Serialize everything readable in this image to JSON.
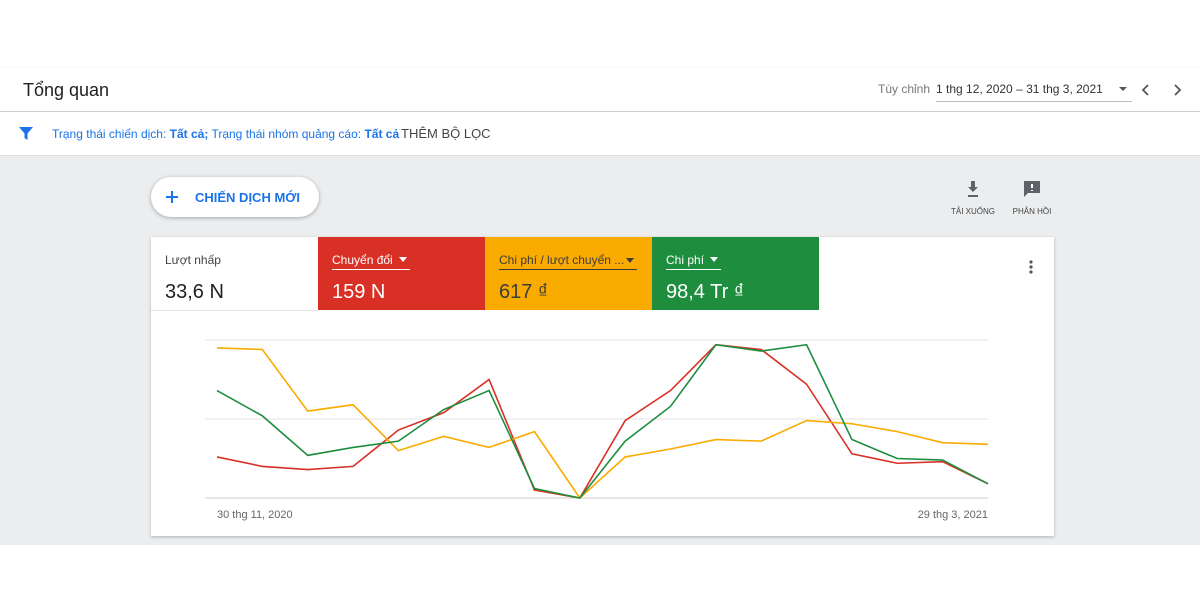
{
  "header": {
    "title": "Tổng quan",
    "range_label": "Tùy chỉnh",
    "date_range": "1 thg 12, 2020 – 31 thg 3, 2021"
  },
  "filter_bar": {
    "filters": [
      {
        "label": "Trạng thái chiến dịch:",
        "value": "Tất cả;"
      },
      {
        "label": "Trạng thái nhóm quảng cáo:",
        "value": "Tất cả"
      }
    ],
    "add_filter": "THÊM BỘ LỌC"
  },
  "actions": {
    "new_campaign": "CHIẾN DỊCH MỚI",
    "download": "TẢI XUỐNG",
    "feedback": "PHẢN HỒI"
  },
  "clicks": {
    "label": "Lượt nhấp",
    "value": "33,6 N"
  },
  "chart_data": {
    "type": "line",
    "categories": [
      "30 thg 11, 2020",
      null,
      null,
      null,
      null,
      null,
      null,
      null,
      null,
      null,
      null,
      null,
      null,
      null,
      null,
      null,
      null,
      "29 thg 3, 2021"
    ],
    "ylim": [
      0,
      100
    ],
    "yticks": [
      0,
      50,
      100
    ],
    "grid": true,
    "series": [
      {
        "name": "Chuyển đổi",
        "summary": "159 N",
        "color": "#d93025",
        "values": [
          26,
          20,
          18,
          20,
          43,
          54,
          75,
          5,
          0,
          49,
          68,
          97,
          94,
          72,
          28,
          22,
          23,
          9
        ]
      },
      {
        "name": "Chi phí / lượt chuyển ...",
        "summary": "617 ₫",
        "color": "#f9ab00",
        "values": [
          95,
          94,
          55,
          59,
          30,
          39,
          32,
          42,
          0,
          26,
          31,
          37,
          36,
          49,
          47,
          42,
          35,
          34
        ]
      },
      {
        "name": "Chi phí",
        "summary": "98,4 Tr ₫",
        "color": "#1e8e3e",
        "values": [
          68,
          52,
          27,
          32,
          36,
          56,
          68,
          6,
          0,
          36,
          58,
          97,
          93,
          97,
          37,
          25,
          24,
          9
        ]
      }
    ]
  }
}
